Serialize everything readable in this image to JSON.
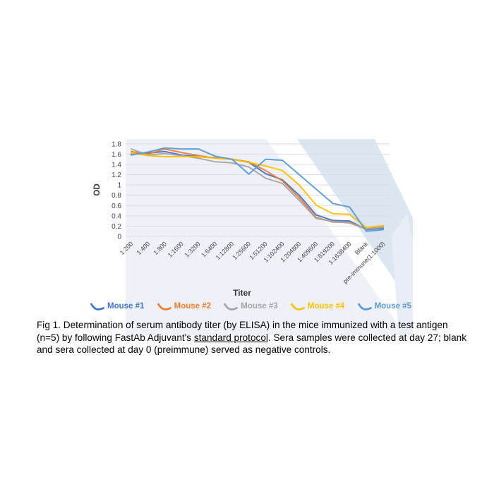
{
  "figure": {
    "caption": {
      "part1": "Fig 1. Determination of serum antibody titer (by ELISA) in the mice immunized with a test antigen (n=5) by following FastAb Adjuvant's ",
      "underlined": "standard protocol",
      "part2": ". Sera samples were collected at day 27; blank and sera collected at day 0 (preimmune) served as negative controls."
    }
  },
  "chart_data": {
    "type": "line",
    "title": "",
    "xlabel": "Titer",
    "ylabel": "OD",
    "ylim": [
      0,
      1.8
    ],
    "ytick_step": 0.2,
    "ytick_labels": [
      "0",
      "0.2",
      "0.4",
      "0.6",
      "0.8",
      "1",
      "1.2",
      "1.4",
      "1.6",
      "1.8"
    ],
    "grid": "horizontal",
    "legend_position": "bottom",
    "x_tick_rotation": -45,
    "categories": [
      "1:200",
      "1:400",
      "1:800",
      "1:1600",
      "1:3200",
      "1:6400",
      "1:12800",
      "1:25600",
      "1:51200",
      "1:102400",
      "1:204800",
      "1:409600",
      "1:819200",
      "1:1638400",
      "Blank",
      "pre-immune(1:1000)"
    ],
    "series": [
      {
        "name": "Mouse #1",
        "color": "#4472C4",
        "values": [
          1.6,
          1.62,
          1.65,
          1.58,
          1.55,
          1.53,
          1.5,
          1.44,
          1.22,
          1.1,
          0.8,
          0.42,
          0.31,
          0.3,
          0.13,
          0.16
        ]
      },
      {
        "name": "Mouse #2",
        "color": "#ED7D31",
        "values": [
          1.65,
          1.6,
          1.7,
          1.63,
          1.57,
          1.52,
          1.5,
          1.45,
          1.28,
          1.08,
          0.75,
          0.37,
          0.28,
          0.27,
          0.15,
          0.2
        ]
      },
      {
        "name": "Mouse #3",
        "color": "#A5A5A5",
        "values": [
          1.7,
          1.58,
          1.61,
          1.57,
          1.52,
          1.45,
          1.43,
          1.35,
          1.13,
          1.03,
          0.7,
          0.35,
          0.29,
          0.26,
          0.14,
          0.18
        ]
      },
      {
        "name": "Mouse #4",
        "color": "#FFC000",
        "values": [
          1.62,
          1.57,
          1.55,
          1.55,
          1.55,
          1.52,
          1.5,
          1.44,
          1.37,
          1.28,
          1.0,
          0.61,
          0.44,
          0.43,
          0.17,
          0.21
        ]
      },
      {
        "name": "Mouse #5",
        "color": "#5B9BD5",
        "values": [
          1.58,
          1.64,
          1.72,
          1.7,
          1.7,
          1.56,
          1.5,
          1.21,
          1.5,
          1.48,
          1.2,
          0.92,
          0.64,
          0.57,
          0.1,
          0.13
        ]
      }
    ],
    "style_colors": {
      "gridline": "#d9dde3",
      "tick_text": "#444444",
      "axis_title_text": "#3a3a3a",
      "plot_tint": "#eef2f8",
      "watermark_band": "#dce6f1",
      "watermark_band_light": "#e9eef6"
    }
  }
}
